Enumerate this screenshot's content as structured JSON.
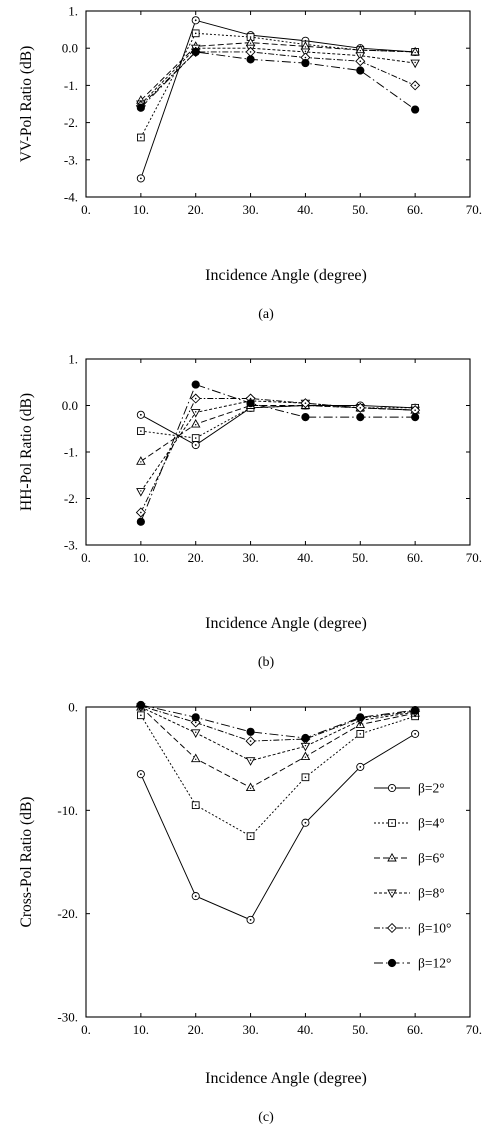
{
  "chart_data": [
    {
      "type": "line",
      "panel": "(a)",
      "xlabel": "Incidence Angle (degree)",
      "ylabel": "VV-Pol Ratio (dB)",
      "xlim": [
        0,
        70
      ],
      "ylim": [
        -4,
        1
      ],
      "xticks": [
        "0.",
        "10.",
        "20.",
        "30.",
        "40.",
        "50.",
        "60.",
        "70."
      ],
      "yticks": [
        "1.",
        "0.0",
        "-1.",
        "-2.",
        "-3.",
        "-4."
      ],
      "x": [
        10,
        20,
        30,
        40,
        50,
        60
      ],
      "series": [
        {
          "name": "β=2°",
          "marker": "circle-dot",
          "dash": "solid",
          "values": [
            -3.5,
            0.75,
            0.35,
            0.2,
            0.0,
            -0.1
          ]
        },
        {
          "name": "β=4°",
          "marker": "square-dot",
          "dash": "dotted",
          "values": [
            -2.4,
            0.4,
            0.3,
            0.1,
            -0.05,
            -0.1
          ]
        },
        {
          "name": "β=6°",
          "marker": "triangle-up-dot",
          "dash": "dashed",
          "values": [
            -1.4,
            0.05,
            0.15,
            0.05,
            -0.05,
            -0.1
          ]
        },
        {
          "name": "β=8°",
          "marker": "triangle-down-dot",
          "dash": "short-dash",
          "values": [
            -1.5,
            0.0,
            0.0,
            -0.1,
            -0.2,
            -0.4
          ]
        },
        {
          "name": "β=10°",
          "marker": "diamond-dot",
          "dash": "dash-dot",
          "values": [
            -1.55,
            -0.1,
            -0.1,
            -0.25,
            -0.35,
            -1.0
          ]
        },
        {
          "name": "β=12°",
          "marker": "filled-circle",
          "dash": "long-dash-dot",
          "values": [
            -1.6,
            -0.1,
            -0.3,
            -0.4,
            -0.6,
            -1.65
          ]
        }
      ],
      "caption": "(a)"
    },
    {
      "type": "line",
      "panel": "(b)",
      "xlabel": "Incidence Angle (degree)",
      "ylabel": "HH-Pol Ratio (dB)",
      "xlim": [
        0,
        70
      ],
      "ylim": [
        -3,
        1
      ],
      "xticks": [
        "0.",
        "10.",
        "20.",
        "30.",
        "40.",
        "50.",
        "60.",
        "70."
      ],
      "yticks": [
        "1.",
        "0.0",
        "-1.",
        "-2.",
        "-3."
      ],
      "x": [
        10,
        20,
        30,
        40,
        50,
        60
      ],
      "series": [
        {
          "name": "β=2°",
          "marker": "circle-dot",
          "dash": "solid",
          "values": [
            -0.2,
            -0.85,
            -0.05,
            0.0,
            0.0,
            -0.05
          ]
        },
        {
          "name": "β=4°",
          "marker": "square-dot",
          "dash": "dotted",
          "values": [
            -0.55,
            -0.7,
            -0.05,
            0.0,
            -0.05,
            -0.05
          ]
        },
        {
          "name": "β=6°",
          "marker": "triangle-up-dot",
          "dash": "dashed",
          "values": [
            -1.2,
            -0.4,
            0.0,
            0.0,
            -0.05,
            -0.1
          ]
        },
        {
          "name": "β=8°",
          "marker": "triangle-down-dot",
          "dash": "short-dash",
          "values": [
            -1.85,
            -0.15,
            0.1,
            0.05,
            -0.05,
            -0.1
          ]
        },
        {
          "name": "β=10°",
          "marker": "diamond-dot",
          "dash": "dash-dot",
          "values": [
            -2.3,
            0.15,
            0.15,
            0.05,
            -0.05,
            -0.1
          ]
        },
        {
          "name": "β=12°",
          "marker": "filled-circle",
          "dash": "long-dash-dot",
          "values": [
            -2.5,
            0.45,
            0.05,
            -0.25,
            -0.25,
            -0.25
          ]
        }
      ],
      "caption": "(b)"
    },
    {
      "type": "line",
      "panel": "(c)",
      "xlabel": "Incidence Angle (degree)",
      "ylabel": "Cross-Pol Ratio (dB)",
      "xlim": [
        0,
        70
      ],
      "ylim": [
        -30,
        0
      ],
      "xticks": [
        "0.",
        "10.",
        "20.",
        "30.",
        "40.",
        "50.",
        "60.",
        "70."
      ],
      "yticks": [
        "0.",
        "-10.",
        "-20.",
        "-30."
      ],
      "x": [
        10,
        20,
        30,
        40,
        50,
        60
      ],
      "legend_position": "right",
      "series": [
        {
          "name": "β=2°",
          "marker": "circle-dot",
          "dash": "solid",
          "values": [
            -6.5,
            -18.3,
            -20.6,
            -11.2,
            -5.8,
            -2.6
          ]
        },
        {
          "name": "β=4°",
          "marker": "square-dot",
          "dash": "dotted",
          "values": [
            -0.8,
            -9.5,
            -12.5,
            -6.8,
            -2.6,
            -0.9
          ]
        },
        {
          "name": "β=6°",
          "marker": "triangle-up-dot",
          "dash": "dashed",
          "values": [
            0.0,
            -5.0,
            -7.8,
            -4.8,
            -1.7,
            -0.6
          ]
        },
        {
          "name": "β=8°",
          "marker": "triangle-down-dot",
          "dash": "short-dash",
          "values": [
            0.0,
            -2.5,
            -5.2,
            -3.8,
            -1.3,
            -0.5
          ]
        },
        {
          "name": "β=10°",
          "marker": "diamond-dot",
          "dash": "dash-dot",
          "values": [
            0.1,
            -1.5,
            -3.3,
            -3.1,
            -1.1,
            -0.4
          ]
        },
        {
          "name": "β=12°",
          "marker": "filled-circle",
          "dash": "long-dash-dot",
          "values": [
            0.2,
            -1.0,
            -2.4,
            -3.0,
            -1.0,
            -0.3
          ]
        }
      ],
      "caption": "(c)"
    }
  ]
}
